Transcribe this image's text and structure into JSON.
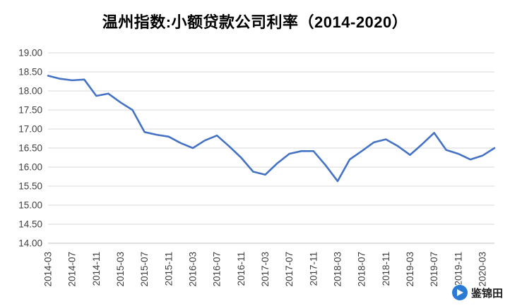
{
  "chart": {
    "title": "温州指数:小额贷款公司利率（2014-2020）",
    "watermark_text": "鉴锦田"
  },
  "chart_data": {
    "type": "line",
    "title": "温州指数:小额贷款公司利率（2014-2020）",
    "xlabel": "",
    "ylabel": "",
    "ylim": [
      14.0,
      19.0
    ],
    "ytick_step": 0.5,
    "grid": true,
    "legend": false,
    "series_color": "#4472C4",
    "gridline_color": "#d9d9d9",
    "axis_line_color": "#bfbfbf",
    "tick_label_color": "#404040",
    "x": [
      "2014-03",
      "2014-05",
      "2014-07",
      "2014-09",
      "2014-11",
      "2015-01",
      "2015-03",
      "2015-05",
      "2015-07",
      "2015-09",
      "2015-11",
      "2016-01",
      "2016-03",
      "2016-05",
      "2016-07",
      "2016-09",
      "2016-11",
      "2017-01",
      "2017-03",
      "2017-05",
      "2017-07",
      "2017-09",
      "2017-11",
      "2018-01",
      "2018-03",
      "2018-05",
      "2018-07",
      "2018-09",
      "2018-11",
      "2019-01",
      "2019-03",
      "2019-05",
      "2019-07",
      "2019-09",
      "2019-11",
      "2020-01",
      "2020-03",
      "2020-05"
    ],
    "x_tick_labels": [
      "2014-03",
      "2014-07",
      "2014-11",
      "2015-03",
      "2015-07",
      "2015-11",
      "2016-03",
      "2016-07",
      "2016-11",
      "2017-03",
      "2017-07",
      "2017-11",
      "2018-03",
      "2018-07",
      "2018-11",
      "2019-03",
      "2019-07",
      "2019-11",
      "2020-03"
    ],
    "values": [
      18.4,
      18.32,
      18.28,
      18.3,
      17.87,
      17.93,
      17.7,
      17.5,
      16.92,
      16.85,
      16.8,
      16.63,
      16.5,
      16.7,
      16.83,
      16.55,
      16.25,
      15.88,
      15.8,
      16.1,
      16.35,
      16.42,
      16.42,
      16.05,
      15.63,
      16.2,
      16.42,
      16.65,
      16.73,
      16.55,
      16.32,
      16.6,
      16.9,
      16.45,
      16.35,
      16.2,
      16.3,
      16.5
    ],
    "y_tick_labels": [
      "14.00",
      "14.50",
      "15.00",
      "15.50",
      "16.00",
      "16.50",
      "17.00",
      "17.50",
      "18.00",
      "18.50",
      "19.00"
    ]
  }
}
